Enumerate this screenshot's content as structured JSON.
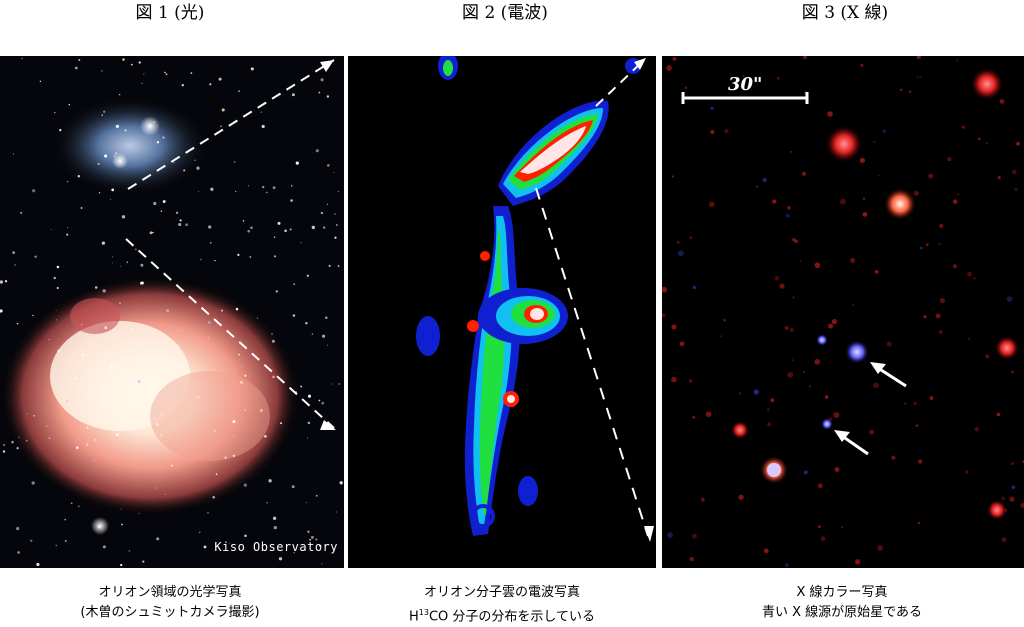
{
  "figure1": {
    "title": "図 1 (光)",
    "credit": "Kiso Observatory",
    "caption_line1": "オリオン領域の光学写真",
    "caption_line2": "(木曽のシュミットカメラ撮影)"
  },
  "figure2": {
    "title": "図 2 (電波)",
    "caption_line1": "オリオン分子雲の電波写真",
    "caption_line2_prefix": "H",
    "caption_line2_sup": "13",
    "caption_line2_suffix": "CO 分子の分布を示している"
  },
  "figure3": {
    "title": "図 3 (X 線)",
    "scale_bar_label": "30\"",
    "caption_line1": "X 線カラー写真",
    "caption_line2": "青い X 線源が原始星である"
  }
}
